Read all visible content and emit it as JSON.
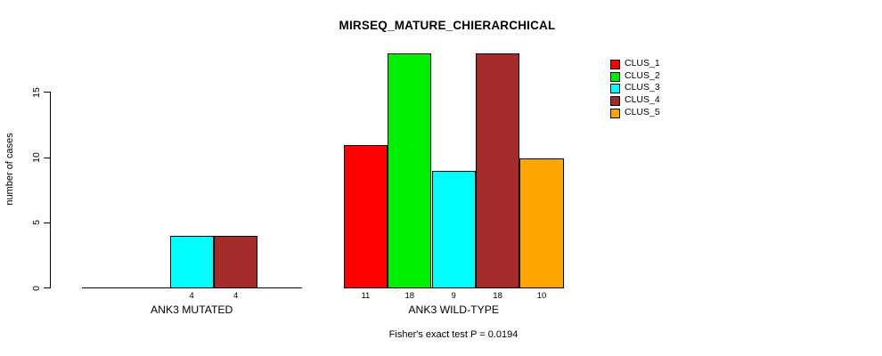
{
  "chart_data": {
    "type": "bar",
    "title": "MIRSEQ_MATURE_CHIERARCHICAL",
    "ylabel": "number of cases",
    "xlabel": "",
    "yticks": [
      0,
      5,
      10,
      15
    ],
    "ylim": [
      0,
      18
    ],
    "grid": false,
    "legend_position": "top-right",
    "categories": [
      "ANK3 MUTATED",
      "ANK3 WILD-TYPE"
    ],
    "series": [
      {
        "name": "CLUS_1",
        "color": "#ff0000",
        "values": [
          0,
          11
        ]
      },
      {
        "name": "CLUS_2",
        "color": "#00ee00",
        "values": [
          0,
          18
        ]
      },
      {
        "name": "CLUS_3",
        "color": "#00ffff",
        "values": [
          4,
          9
        ]
      },
      {
        "name": "CLUS_4",
        "color": "#a52a2a",
        "values": [
          4,
          18
        ]
      },
      {
        "name": "CLUS_5",
        "color": "#ffa500",
        "values": [
          0,
          10
        ]
      }
    ],
    "bar_value_labels_shown": true,
    "annotation": "Fisher's exact test P = 0.0194"
  }
}
